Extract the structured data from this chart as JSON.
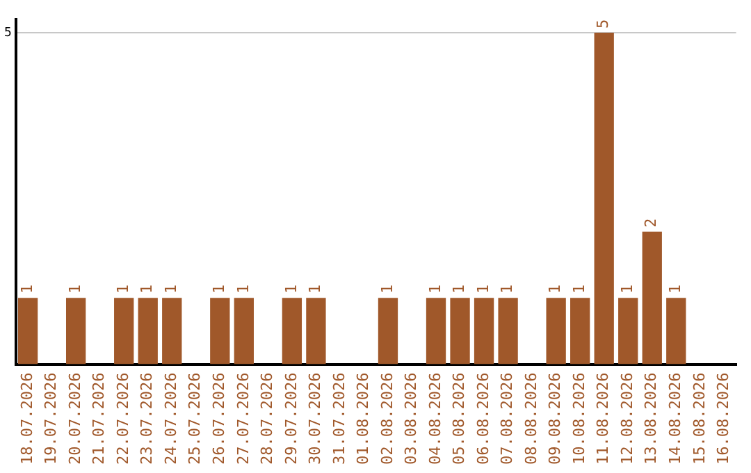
{
  "chart_data": {
    "type": "bar",
    "categories": [
      "18.07.2026",
      "19.07.2026",
      "20.07.2026",
      "21.07.2026",
      "22.07.2026",
      "23.07.2026",
      "24.07.2026",
      "25.07.2026",
      "26.07.2026",
      "27.07.2026",
      "28.07.2026",
      "29.07.2026",
      "30.07.2026",
      "31.07.2026",
      "01.08.2026",
      "02.08.2026",
      "03.08.2026",
      "04.08.2026",
      "05.08.2026",
      "06.08.2026",
      "07.08.2026",
      "08.08.2026",
      "09.08.2026",
      "10.08.2026",
      "11.08.2026",
      "12.08.2026",
      "13.08.2026",
      "14.08.2026",
      "15.08.2026",
      "16.08.2026"
    ],
    "values": [
      1,
      0,
      1,
      0,
      1,
      1,
      1,
      0,
      1,
      1,
      0,
      1,
      1,
      0,
      0,
      1,
      0,
      1,
      1,
      1,
      1,
      0,
      1,
      1,
      5,
      1,
      2,
      1,
      0,
      0
    ],
    "value_labels": [
      "1",
      null,
      "1",
      null,
      "1",
      "1",
      "1",
      null,
      "1",
      "1",
      null,
      "1",
      "1",
      null,
      null,
      "1",
      null,
      "1",
      "1",
      "1",
      "1",
      null,
      "1",
      "1",
      "5",
      "1",
      "2",
      "1",
      null,
      null
    ],
    "color": "#a0582a",
    "ylim": [
      0,
      5.2
    ],
    "yticks": [
      5
    ],
    "grid": "y",
    "legend": false
  }
}
